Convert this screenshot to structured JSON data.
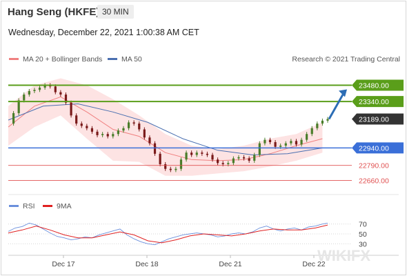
{
  "header": {
    "title": "Hang Seng (HKFE)",
    "timeframe": "30 MIN",
    "datetime": "Wednesday, December 22, 2021 1:00:38 AM CET"
  },
  "legend": {
    "ma20_label": "MA 20 + Bollinger Bands",
    "ma50_label": "MA 50",
    "rsi_label": "RSI",
    "ma9_label": "9MA",
    "credit": "Research © 2021 Trading Central"
  },
  "watermark": "WIKIFX",
  "colors": {
    "ma20": "#f08080",
    "bollinger_fill": "#fde3e3",
    "ma50": "#4a6fb0",
    "resistance": "#5a9e1a",
    "support": "#3a6fd8",
    "target": "#e05050",
    "price_tag": "#333333",
    "arrow": "#2c6db5",
    "candle_up": "#4a7d2a",
    "candle_down": "#7a1a1a",
    "rsi": "#6a8fdc",
    "ma9": "#e02020"
  },
  "chart_data": {
    "type": "line",
    "title": "Hang Seng (HKFE)",
    "xlabel": "",
    "ylabel": "",
    "x_ticks": [
      "Dec 17",
      "Dec 18",
      "Dec 21",
      "Dec 22"
    ],
    "ylim": [
      22580,
      23620
    ],
    "current_price": 23189.0,
    "levels": [
      {
        "label": "23480.00",
        "value": 23480,
        "kind": "resistance"
      },
      {
        "label": "23340.00",
        "value": 23340,
        "kind": "resistance"
      },
      {
        "label": "23189.00",
        "value": 23189,
        "kind": "last"
      },
      {
        "label": "22940.00",
        "value": 22940,
        "kind": "pivot"
      },
      {
        "label": "22790.00",
        "value": 22790,
        "kind": "support"
      },
      {
        "label": "22660.00",
        "value": 22660,
        "kind": "support"
      }
    ],
    "price_path": [
      [
        0,
        23150
      ],
      [
        6,
        23240
      ],
      [
        12,
        23350
      ],
      [
        18,
        23400
      ],
      [
        24,
        23430
      ],
      [
        30,
        23440
      ],
      [
        36,
        23460
      ],
      [
        42,
        23480
      ],
      [
        48,
        23470
      ],
      [
        54,
        23420
      ],
      [
        60,
        23400
      ],
      [
        66,
        23330
      ],
      [
        72,
        23220
      ],
      [
        78,
        23150
      ],
      [
        84,
        23130
      ],
      [
        90,
        23110
      ],
      [
        96,
        23080
      ],
      [
        102,
        23050
      ],
      [
        108,
        23060
      ],
      [
        114,
        23040
      ],
      [
        120,
        23060
      ],
      [
        126,
        23090
      ],
      [
        132,
        23110
      ],
      [
        138,
        23160
      ],
      [
        144,
        23150
      ],
      [
        150,
        23100
      ],
      [
        156,
        23030
      ],
      [
        162,
        22980
      ],
      [
        168,
        22890
      ],
      [
        174,
        22800
      ],
      [
        180,
        22760
      ],
      [
        186,
        22750
      ],
      [
        192,
        22760
      ],
      [
        198,
        22840
      ],
      [
        204,
        22900
      ],
      [
        210,
        22880
      ],
      [
        216,
        22900
      ],
      [
        222,
        22890
      ],
      [
        228,
        22880
      ],
      [
        234,
        22840
      ],
      [
        240,
        22810
      ],
      [
        246,
        22800
      ],
      [
        252,
        22810
      ],
      [
        258,
        22850
      ],
      [
        264,
        22860
      ],
      [
        270,
        22850
      ],
      [
        276,
        22830
      ],
      [
        282,
        22880
      ],
      [
        288,
        22980
      ],
      [
        294,
        23010
      ],
      [
        300,
        22990
      ],
      [
        306,
        22950
      ],
      [
        312,
        22960
      ],
      [
        318,
        22980
      ],
      [
        324,
        23000
      ],
      [
        330,
        22970
      ],
      [
        336,
        23010
      ],
      [
        342,
        23060
      ],
      [
        348,
        23110
      ],
      [
        354,
        23150
      ],
      [
        360,
        23175
      ],
      [
        366,
        23189
      ]
    ],
    "ma20_path": [
      [
        0,
        23120
      ],
      [
        30,
        23300
      ],
      [
        60,
        23380
      ],
      [
        90,
        23250
      ],
      [
        120,
        23100
      ],
      [
        150,
        23040
      ],
      [
        180,
        22900
      ],
      [
        210,
        22840
      ],
      [
        240,
        22830
      ],
      [
        270,
        22840
      ],
      [
        300,
        22890
      ],
      [
        330,
        22960
      ],
      [
        360,
        23020
      ]
    ],
    "boll_upper": [
      [
        0,
        23300
      ],
      [
        30,
        23480
      ],
      [
        60,
        23540
      ],
      [
        90,
        23480
      ],
      [
        120,
        23360
      ],
      [
        150,
        23220
      ],
      [
        180,
        23060
      ],
      [
        210,
        22960
      ],
      [
        240,
        22930
      ],
      [
        270,
        22960
      ],
      [
        300,
        23020
      ],
      [
        330,
        23060
      ],
      [
        360,
        23160
      ]
    ],
    "boll_lower": [
      [
        0,
        22960
      ],
      [
        30,
        23120
      ],
      [
        60,
        23220
      ],
      [
        90,
        23020
      ],
      [
        120,
        22830
      ],
      [
        150,
        22820
      ],
      [
        180,
        22700
      ],
      [
        210,
        22700
      ],
      [
        240,
        22720
      ],
      [
        270,
        22740
      ],
      [
        300,
        22780
      ],
      [
        330,
        22830
      ],
      [
        360,
        22900
      ]
    ],
    "ma50_path": [
      [
        0,
        23180
      ],
      [
        40,
        23300
      ],
      [
        80,
        23320
      ],
      [
        120,
        23250
      ],
      [
        160,
        23160
      ],
      [
        200,
        23020
      ],
      [
        240,
        22920
      ],
      [
        280,
        22880
      ],
      [
        320,
        22890
      ],
      [
        360,
        22940
      ]
    ],
    "target_arrow": {
      "from": 23189,
      "to": 23480
    },
    "rsi": {
      "levels": [
        70,
        50,
        30
      ],
      "ylim": [
        15,
        85
      ],
      "rsi_path": [
        [
          0,
          55
        ],
        [
          8,
          62
        ],
        [
          16,
          65
        ],
        [
          24,
          72
        ],
        [
          32,
          68
        ],
        [
          40,
          60
        ],
        [
          48,
          52
        ],
        [
          56,
          45
        ],
        [
          64,
          42
        ],
        [
          72,
          38
        ],
        [
          80,
          40
        ],
        [
          88,
          44
        ],
        [
          96,
          42
        ],
        [
          104,
          48
        ],
        [
          112,
          52
        ],
        [
          120,
          56
        ],
        [
          128,
          60
        ],
        [
          136,
          48
        ],
        [
          144,
          40
        ],
        [
          152,
          34
        ],
        [
          160,
          30
        ],
        [
          168,
          28
        ],
        [
          176,
          34
        ],
        [
          184,
          40
        ],
        [
          192,
          44
        ],
        [
          200,
          48
        ],
        [
          208,
          50
        ],
        [
          216,
          52
        ],
        [
          224,
          50
        ],
        [
          232,
          48
        ],
        [
          240,
          44
        ],
        [
          248,
          46
        ],
        [
          256,
          50
        ],
        [
          264,
          52
        ],
        [
          272,
          50
        ],
        [
          280,
          54
        ],
        [
          288,
          62
        ],
        [
          296,
          66
        ],
        [
          304,
          60
        ],
        [
          312,
          56
        ],
        [
          320,
          60
        ],
        [
          328,
          62
        ],
        [
          336,
          58
        ],
        [
          344,
          64
        ],
        [
          352,
          66
        ],
        [
          360,
          70
        ],
        [
          366,
          72
        ]
      ],
      "ma9_path": [
        [
          0,
          52
        ],
        [
          16,
          58
        ],
        [
          32,
          66
        ],
        [
          48,
          58
        ],
        [
          64,
          48
        ],
        [
          80,
          42
        ],
        [
          96,
          42
        ],
        [
          112,
          48
        ],
        [
          128,
          54
        ],
        [
          144,
          48
        ],
        [
          160,
          36
        ],
        [
          176,
          32
        ],
        [
          192,
          38
        ],
        [
          208,
          46
        ],
        [
          224,
          50
        ],
        [
          240,
          48
        ],
        [
          256,
          46
        ],
        [
          272,
          50
        ],
        [
          288,
          56
        ],
        [
          304,
          60
        ],
        [
          320,
          58
        ],
        [
          336,
          58
        ],
        [
          352,
          62
        ],
        [
          366,
          68
        ]
      ]
    }
  }
}
